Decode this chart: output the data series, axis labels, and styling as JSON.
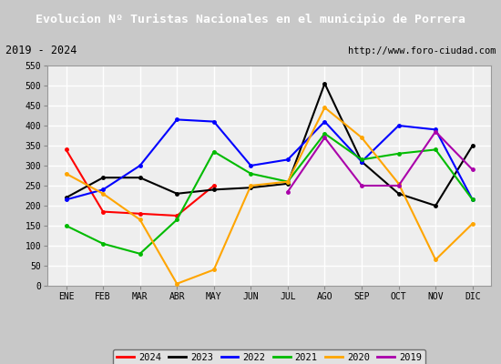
{
  "title": "Evolucion Nº Turistas Nacionales en el municipio de Porrera",
  "subtitle_left": "2019 - 2024",
  "subtitle_right": "http://www.foro-ciudad.com",
  "months": [
    "ENE",
    "FEB",
    "MAR",
    "ABR",
    "MAY",
    "JUN",
    "JUL",
    "AGO",
    "SEP",
    "OCT",
    "NOV",
    "DIC"
  ],
  "series": {
    "2024": {
      "color": "#ff0000",
      "data": [
        340,
        185,
        180,
        175,
        250,
        null,
        null,
        null,
        null,
        null,
        null,
        null
      ]
    },
    "2023": {
      "color": "#000000",
      "data": [
        220,
        270,
        270,
        230,
        240,
        245,
        255,
        505,
        310,
        230,
        200,
        350
      ]
    },
    "2022": {
      "color": "#0000ff",
      "data": [
        215,
        240,
        300,
        415,
        410,
        300,
        315,
        410,
        310,
        400,
        390,
        215
      ]
    },
    "2021": {
      "color": "#00bb00",
      "data": [
        150,
        105,
        80,
        165,
        335,
        280,
        260,
        380,
        315,
        330,
        340,
        215
      ]
    },
    "2020": {
      "color": "#ffa500",
      "data": [
        280,
        230,
        165,
        5,
        40,
        250,
        260,
        445,
        370,
        255,
        65,
        155
      ]
    },
    "2019": {
      "color": "#aa00aa",
      "data": [
        null,
        null,
        null,
        null,
        null,
        null,
        235,
        370,
        250,
        250,
        385,
        290
      ]
    }
  },
  "ylim": [
    0,
    550
  ],
  "yticks": [
    0,
    50,
    100,
    150,
    200,
    250,
    300,
    350,
    400,
    450,
    500,
    550
  ],
  "title_bg_color": "#4472c4",
  "title_font_color": "#ffffff",
  "subtitle_bg_color": "#e0e0e0",
  "plot_bg_color": "#eeeeee",
  "grid_color": "#ffffff",
  "outer_bg_color": "#c8c8c8",
  "legend_order": [
    "2024",
    "2023",
    "2022",
    "2021",
    "2020",
    "2019"
  ]
}
